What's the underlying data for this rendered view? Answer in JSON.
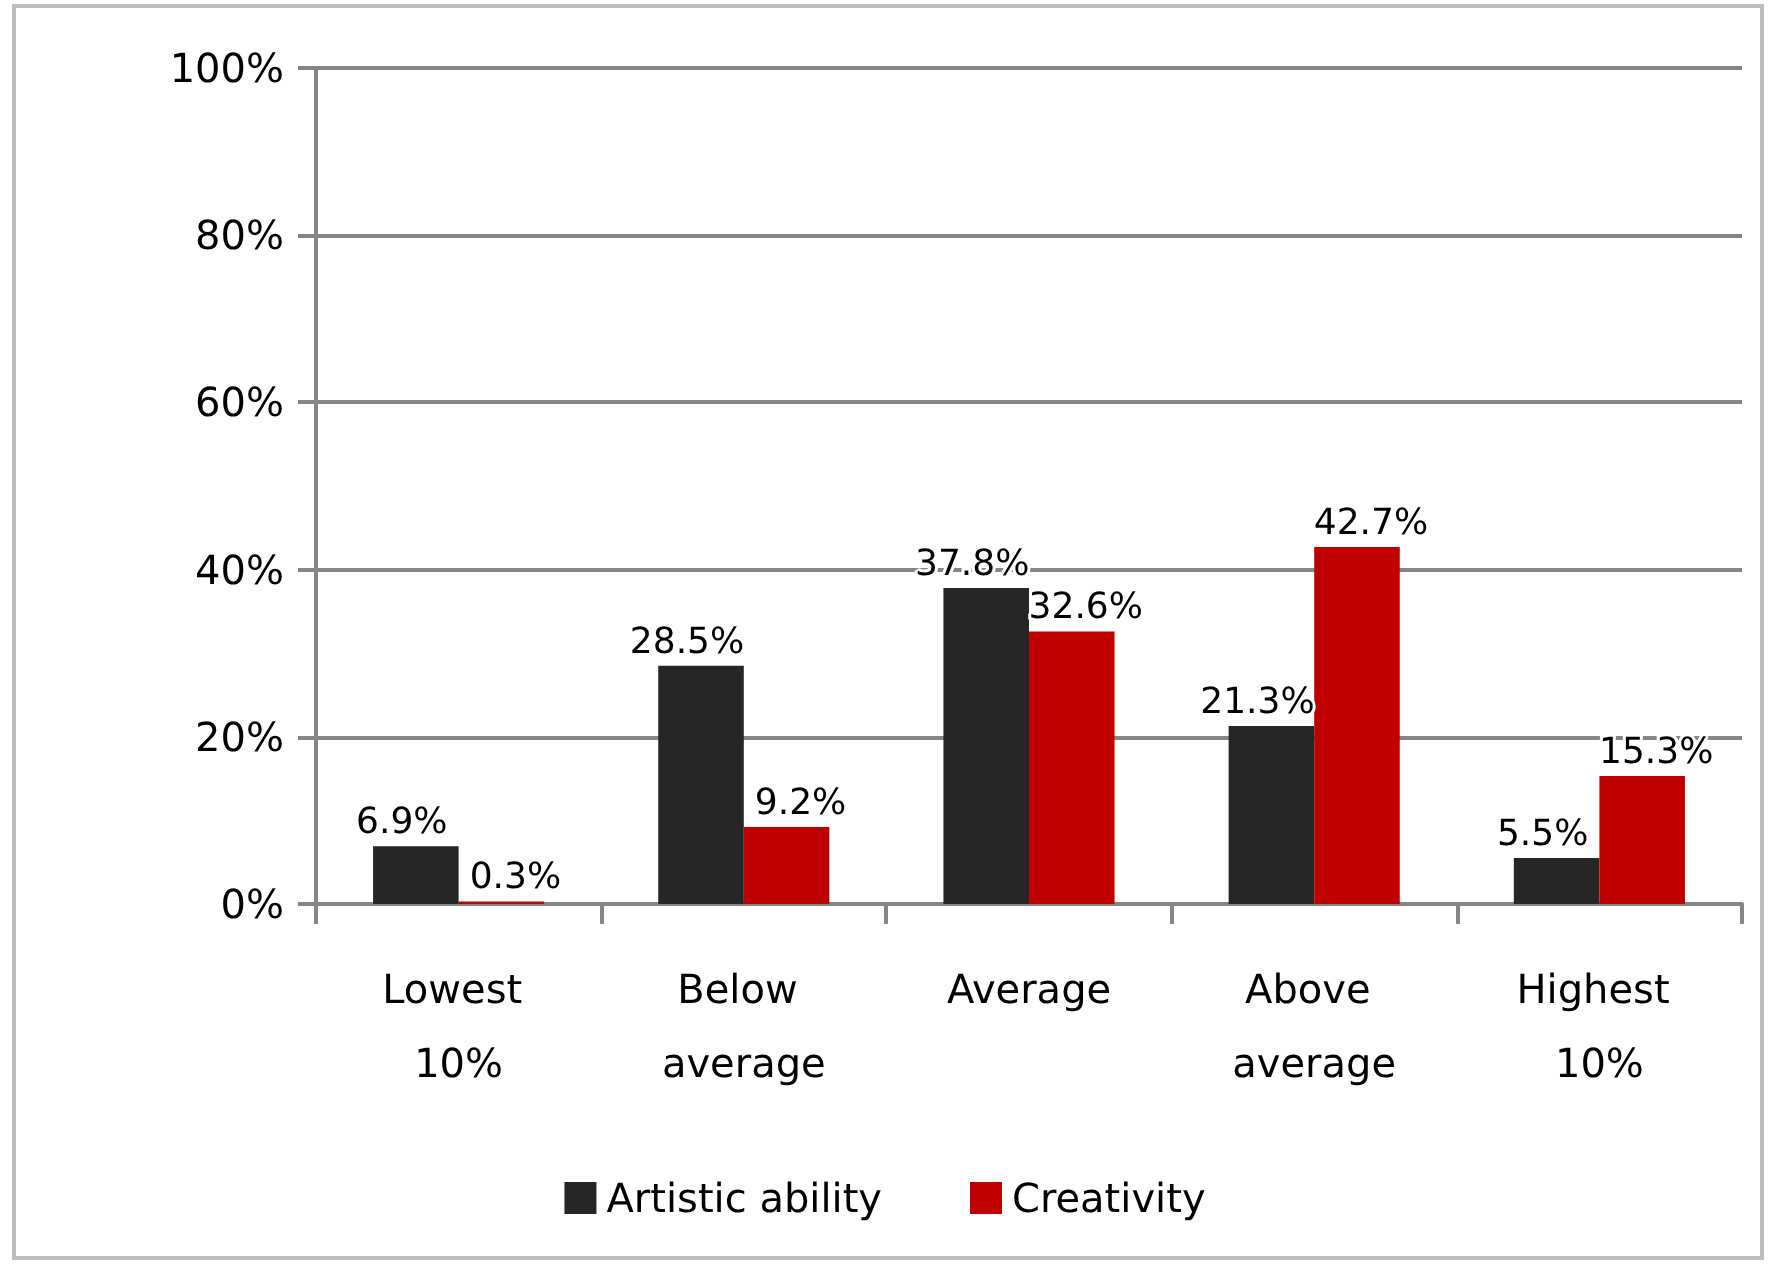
{
  "chart_data": {
    "type": "bar",
    "categories": [
      "Lowest 10%",
      "Below average",
      "Average",
      "Above average",
      "Highest 10%"
    ],
    "series": [
      {
        "name": "Artistic ability",
        "color": "#262626",
        "values": [
          6.9,
          28.5,
          37.8,
          21.3,
          5.5
        ],
        "value_labels": [
          "6.9%",
          "28.5%",
          "37.8%",
          "21.3%",
          "5.5%"
        ]
      },
      {
        "name": "Creativity",
        "color": "#c00000",
        "values": [
          0.3,
          9.2,
          32.6,
          42.7,
          15.3
        ],
        "value_labels": [
          "0.3%",
          "9.2%",
          "32.6%",
          "42.7%",
          "15.3%"
        ]
      }
    ],
    "ylim": [
      0,
      100
    ],
    "yticks": [
      {
        "value": 0,
        "label": "0%"
      },
      {
        "value": 20,
        "label": "20%"
      },
      {
        "value": 40,
        "label": "40%"
      },
      {
        "value": 60,
        "label": "60%"
      },
      {
        "value": 80,
        "label": "80%"
      },
      {
        "value": 100,
        "label": "100%"
      }
    ],
    "grid": "y",
    "legend": "bottom"
  }
}
